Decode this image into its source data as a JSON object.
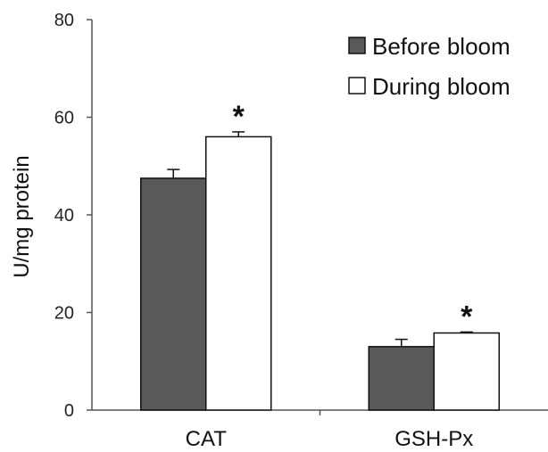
{
  "chart_data": {
    "type": "bar",
    "title": "",
    "xlabel": "",
    "ylabel": "U/mg protein",
    "ylim": [
      0,
      80
    ],
    "yticks": [
      "0",
      "20",
      "40",
      "60",
      "80"
    ],
    "categories": [
      "CAT",
      "GSH-Px"
    ],
    "series": [
      {
        "name": "Before bloom",
        "values": [
          47.5,
          13.0
        ],
        "errors": [
          1.8,
          1.5
        ],
        "color": "#595959"
      },
      {
        "name": "During bloom",
        "values": [
          56.0,
          15.8
        ],
        "errors": [
          1.0,
          0.2
        ],
        "color": "#ffffff"
      }
    ],
    "annotations": [
      {
        "category": "CAT",
        "series": "During bloom",
        "text": "*"
      },
      {
        "category": "GSH-Px",
        "series": "During bloom",
        "text": "*"
      }
    ],
    "legend": "top-right",
    "grid": false
  }
}
